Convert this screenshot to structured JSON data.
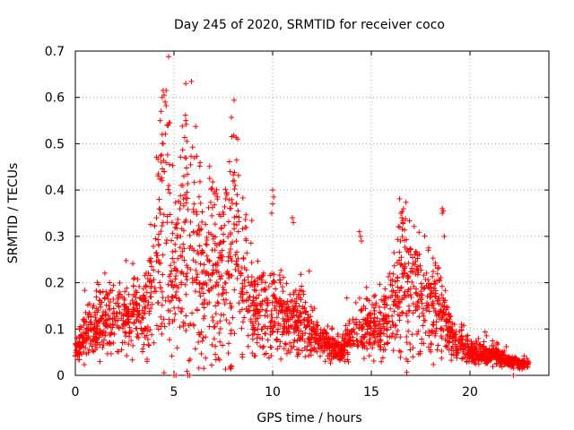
{
  "chart_data": {
    "type": "scatter",
    "title": "Day 245 of 2020, SRMTID for receiver coco",
    "xlabel": "GPS time / hours",
    "ylabel": "SRMTID / TECUs",
    "xlim": [
      0,
      24
    ],
    "ylim": [
      0,
      0.7
    ],
    "x_ticks": [
      0,
      5,
      10,
      15,
      20
    ],
    "x_tick_labels": [
      "0",
      "5",
      "10",
      "15",
      "20"
    ],
    "y_ticks": [
      0,
      0.1,
      0.2,
      0.3,
      0.4,
      0.5,
      0.6,
      0.7
    ],
    "y_tick_labels": [
      "0",
      "0.1",
      "0.2",
      "0.3",
      "0.4",
      "0.5",
      "0.6",
      "0.7"
    ],
    "grid": true,
    "marker": "+",
    "series": [
      {
        "name": "SRMTID",
        "color": "#ff0000",
        "profile_x": [
          0,
          0.3,
          0.6,
          1,
          1.5,
          2,
          2.5,
          3,
          3.5,
          4,
          4.3,
          4.6,
          4.9,
          5.3,
          5.6,
          6,
          6.5,
          7,
          7.5,
          8,
          8.5,
          9,
          9.5,
          10,
          10.5,
          11,
          11.5,
          12,
          12.5,
          13,
          13.5,
          14,
          14.5,
          15,
          15.5,
          16,
          16.5,
          17,
          17.5,
          18,
          18.5,
          19,
          19.5,
          20,
          20.5,
          21,
          21.5,
          22,
          22.5,
          23
        ],
        "profile_y": [
          0.05,
          0.08,
          0.09,
          0.1,
          0.12,
          0.13,
          0.12,
          0.13,
          0.14,
          0.2,
          0.28,
          0.38,
          0.2,
          0.25,
          0.28,
          0.26,
          0.24,
          0.25,
          0.22,
          0.28,
          0.2,
          0.15,
          0.14,
          0.15,
          0.13,
          0.12,
          0.11,
          0.09,
          0.07,
          0.06,
          0.05,
          0.09,
          0.1,
          0.1,
          0.11,
          0.14,
          0.2,
          0.19,
          0.17,
          0.16,
          0.14,
          0.09,
          0.07,
          0.05,
          0.045,
          0.045,
          0.04,
          0.03,
          0.025,
          0.025
        ],
        "count": 2600,
        "outlier_points": [
          [
            4.4,
            0.6
          ],
          [
            4.45,
            0.615
          ],
          [
            4.5,
            0.605
          ],
          [
            4.55,
            0.59
          ],
          [
            4.6,
            0.615
          ],
          [
            4.35,
            0.57
          ],
          [
            4.3,
            0.55
          ],
          [
            4.4,
            0.52
          ],
          [
            4.45,
            0.5
          ],
          [
            4.35,
            0.46
          ],
          [
            4.5,
            0.44
          ],
          [
            4.4,
            0.42
          ],
          [
            4.25,
            0.38
          ],
          [
            4.3,
            0.35
          ],
          [
            4.45,
            0.33
          ],
          [
            5.6,
            0.63
          ],
          [
            5.6,
            0.55
          ],
          [
            5.65,
            0.505
          ],
          [
            5.55,
            0.47
          ],
          [
            5.5,
            0.43
          ],
          [
            5.45,
            0.41
          ],
          [
            5.55,
            0.39
          ],
          [
            8.05,
            0.42
          ],
          [
            8.1,
            0.41
          ],
          [
            8.2,
            0.39
          ],
          [
            8.15,
            0.37
          ],
          [
            10.0,
            0.4
          ],
          [
            10.05,
            0.385
          ],
          [
            10.0,
            0.37
          ],
          [
            9.95,
            0.35
          ],
          [
            11.0,
            0.34
          ],
          [
            11.05,
            0.33
          ],
          [
            14.4,
            0.31
          ],
          [
            14.45,
            0.3
          ],
          [
            14.5,
            0.29
          ],
          [
            16.5,
            0.35
          ],
          [
            16.55,
            0.34
          ],
          [
            16.6,
            0.33
          ],
          [
            16.45,
            0.32
          ],
          [
            18.6,
            0.36
          ],
          [
            18.65,
            0.355
          ],
          [
            18.6,
            0.35
          ],
          [
            18.7,
            0.3
          ],
          [
            5.0,
            0.0
          ],
          [
            5.1,
            0.0
          ],
          [
            5.7,
            0.0
          ],
          [
            5.8,
            0.0
          ],
          [
            22.2,
            0.0
          ]
        ]
      }
    ]
  }
}
